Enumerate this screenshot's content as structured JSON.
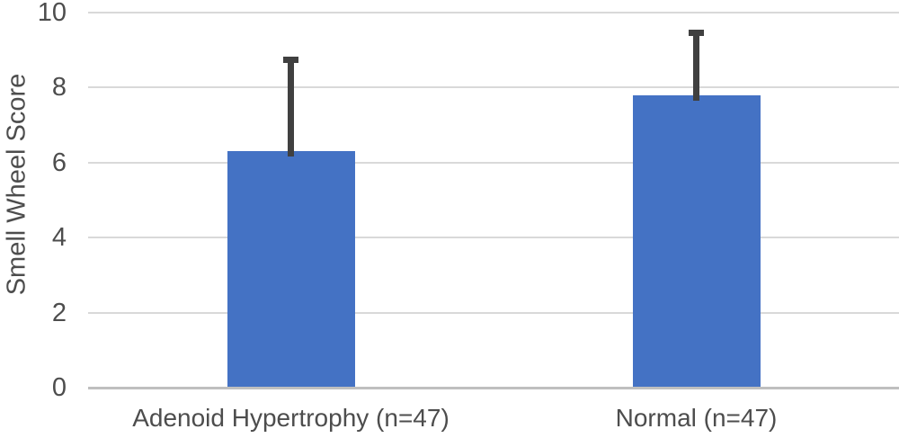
{
  "chart_data": {
    "type": "bar",
    "title": "",
    "ylabel": "Smell Wheel Score",
    "xlabel": "",
    "categories": [
      "Adenoid Hypertrophy (n=47)",
      "Normal (n=47)"
    ],
    "values": [
      6.3,
      7.8
    ],
    "error_upper": [
      2.45,
      1.65
    ],
    "ylim": [
      0,
      10
    ],
    "yticks": [
      0,
      2,
      4,
      6,
      8,
      10
    ],
    "grid": "horizontal-gridlines",
    "legend_position": "none",
    "colors": {
      "bar": "#4472C4",
      "error_bar": "#404040",
      "gridline": "#D9D9D9",
      "axis_line": "#BFBFBF",
      "text": "#4D4D4D",
      "background": "#FFFFFF"
    }
  }
}
